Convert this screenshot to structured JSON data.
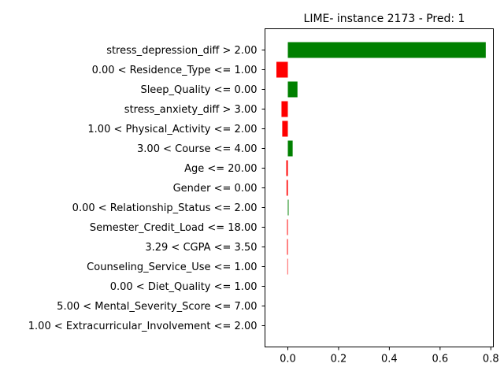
{
  "chart_data": {
    "type": "bar",
    "orientation": "horizontal",
    "title": "LIME- instance 2173 - Pred: 1",
    "xlabel": "",
    "ylabel": "",
    "xlim": [
      -0.09,
      0.81
    ],
    "xticks": [
      0.0,
      0.2,
      0.4,
      0.6,
      0.8
    ],
    "xtick_labels": [
      "0.0",
      "0.2",
      "0.4",
      "0.6",
      "0.8"
    ],
    "grid": false,
    "positive_color": "#008000",
    "negative_color": "#ff0000",
    "categories": [
      "stress_depression_diff > 2.00",
      "0.00 < Residence_Type <= 1.00",
      "Sleep_Quality <= 0.00",
      "stress_anxiety_diff > 3.00",
      "1.00 < Physical_Activity <= 2.00",
      "3.00 < Course <= 4.00",
      "Age <= 20.00",
      "Gender <= 0.00",
      "0.00 < Relationship_Status <= 2.00",
      "Semester_Credit_Load <= 18.00",
      "3.29 < CGPA <= 3.50",
      "Counseling_Service_Use <= 1.00",
      "0.00 < Diet_Quality <= 1.00",
      "5.00 < Mental_Severity_Score <= 7.00",
      "1.00 < Extracurricular_Involvement <= 2.00"
    ],
    "values": [
      0.78,
      -0.045,
      0.038,
      -0.025,
      -0.022,
      0.019,
      -0.006,
      -0.005,
      0.003,
      -0.003,
      -0.003,
      -0.002,
      0.0,
      0.0,
      0.0
    ]
  }
}
